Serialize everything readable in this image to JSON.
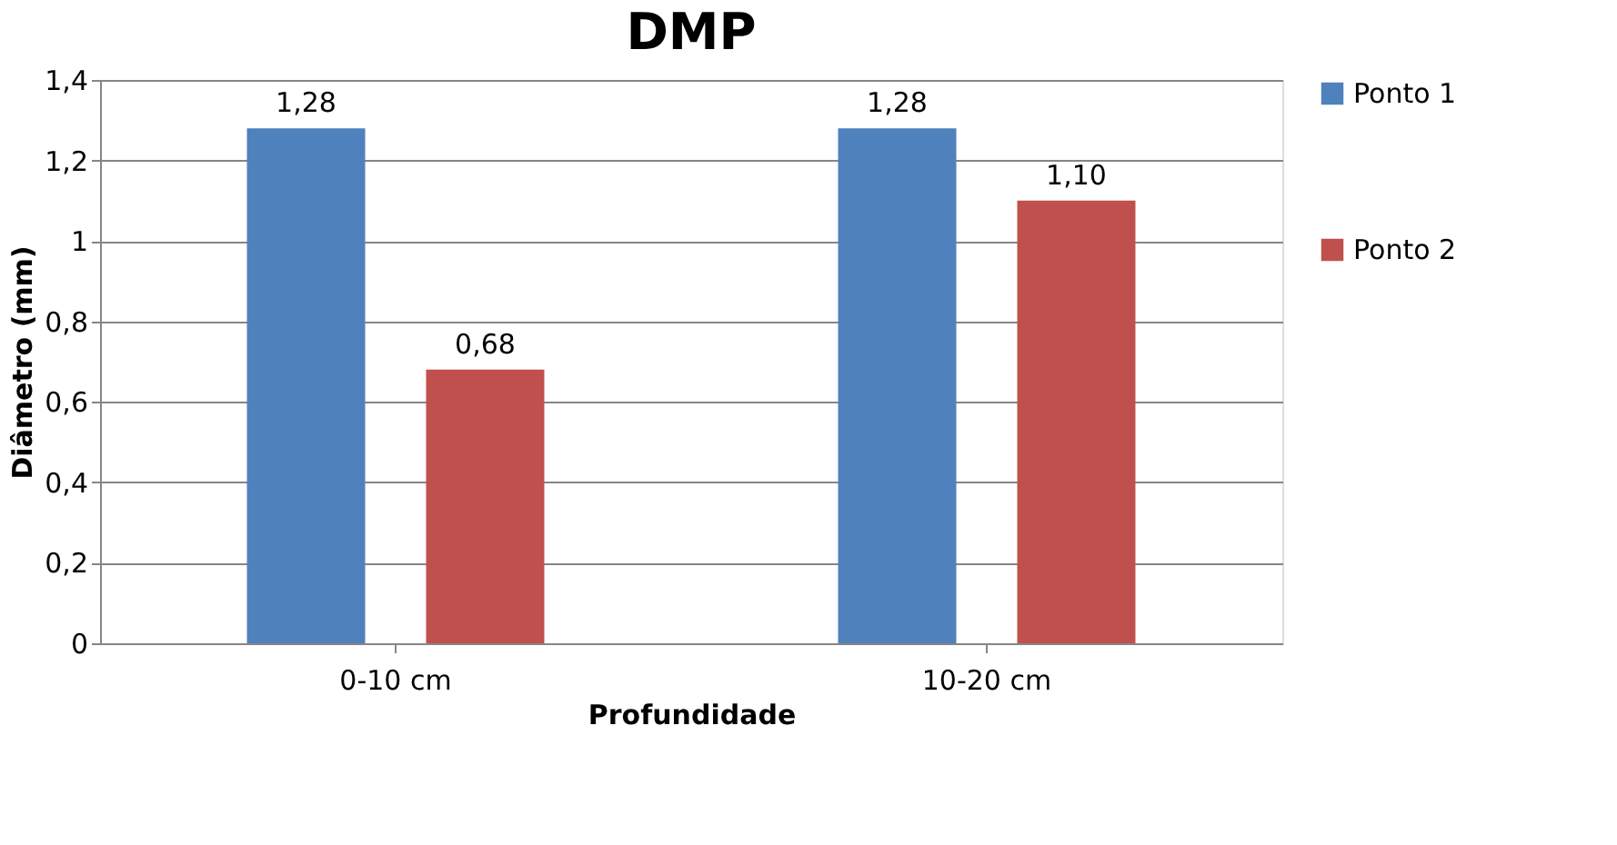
{
  "chart_data": {
    "type": "bar",
    "title": "DMP",
    "xlabel": "Profundidade",
    "ylabel": "Diâmetro (mm)",
    "categories": [
      "0-10 cm",
      "10-20 cm"
    ],
    "series": [
      {
        "name": "Ponto 1",
        "color": "#4f81bd",
        "values": [
          1.28,
          1.28
        ],
        "value_labels": [
          "1,28",
          "1,28"
        ]
      },
      {
        "name": "Ponto 2",
        "color": "#c0504d",
        "values": [
          0.68,
          1.1
        ],
        "value_labels": [
          "0,68",
          "1,10"
        ]
      }
    ],
    "ylim": [
      0,
      1.4
    ],
    "yticks": [
      0,
      {
        "value": 0.2,
        "label": "0,2"
      },
      {
        "value": 0.4,
        "label": "0,4"
      },
      {
        "value": 0.6,
        "label": "0,6"
      },
      {
        "value": 0.8,
        "label": "0,8"
      },
      1,
      {
        "value": 1.2,
        "label": "1,2"
      },
      {
        "value": 1.4,
        "label": "1,4"
      }
    ],
    "grid": "y",
    "legend": "right"
  }
}
